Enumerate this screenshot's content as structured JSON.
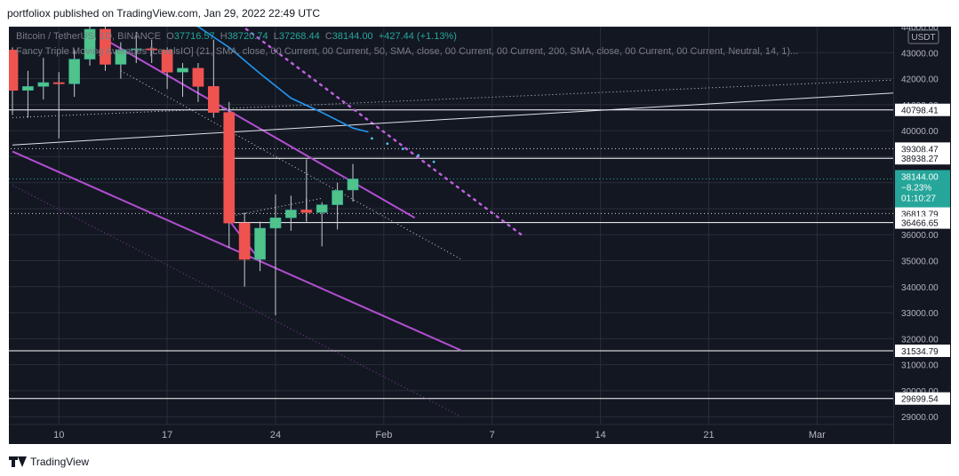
{
  "header": {
    "published_text": "portfoliox published on TradingView.com, Jan 29, 2022 22:49 UTC"
  },
  "legend": {
    "symbol": "Bitcoin / TetherUS, 1D, BINANCE",
    "open_label": "O",
    "open": "37716.57",
    "high_label": "H",
    "high": "38720.74",
    "low_label": "L",
    "low": "37268.44",
    "close_label": "C",
    "close": "38144.00",
    "change": "+427.44 (+1.13%)",
    "indicator": "Fancy Triple Moving Averages [LevelsIO] (21, SMA, close, 00 Current, 00 Current, 50, SMA, close, 00 Current, 00 Current, 200, SMA, close, 00 Current, 00 Current, Neutral, 14, 1)..."
  },
  "price_tag": {
    "price": "38144.00",
    "change": "−8.23%",
    "countdown": "01:10:27"
  },
  "currency_badge": "USDT",
  "footer": {
    "brand": "TradingView"
  },
  "chart_data": {
    "type": "candlestick",
    "symbol": "BTCUSDT",
    "interval": "1D",
    "y_range": [
      28700,
      44000
    ],
    "x_range": [
      "2022-01-07",
      "2022-03-04"
    ],
    "x_ticks": [
      {
        "date": "2022-01-10",
        "label": "10"
      },
      {
        "date": "2022-01-17",
        "label": "17"
      },
      {
        "date": "2022-01-24",
        "label": "24"
      },
      {
        "date": "2022-01-31",
        "label": "Feb"
      },
      {
        "date": "2022-02-07",
        "label": "7"
      },
      {
        "date": "2022-02-14",
        "label": "14"
      },
      {
        "date": "2022-02-21",
        "label": "21"
      },
      {
        "date": "2022-02-28",
        "label": "Mar"
      }
    ],
    "y_ticks": [
      29000,
      30000,
      31000,
      32000,
      33000,
      34000,
      35000,
      36000,
      37000,
      38000,
      39000,
      40000,
      41000,
      42000,
      43000,
      44000
    ],
    "candles": [
      {
        "date": "2022-01-07",
        "o": 43100,
        "h": 43200,
        "l": 40600,
        "c": 41550
      },
      {
        "date": "2022-01-08",
        "o": 41550,
        "h": 42300,
        "l": 40500,
        "c": 41700
      },
      {
        "date": "2022-01-09",
        "o": 41700,
        "h": 42800,
        "l": 41200,
        "c": 41850
      },
      {
        "date": "2022-01-10",
        "o": 41850,
        "h": 42250,
        "l": 39700,
        "c": 41800
      },
      {
        "date": "2022-01-11",
        "o": 41800,
        "h": 43100,
        "l": 41300,
        "c": 42750
      },
      {
        "date": "2022-01-12",
        "o": 42750,
        "h": 44200,
        "l": 42500,
        "c": 43900
      },
      {
        "date": "2022-01-13",
        "o": 43900,
        "h": 44300,
        "l": 42300,
        "c": 42550
      },
      {
        "date": "2022-01-14",
        "o": 42550,
        "h": 43400,
        "l": 42000,
        "c": 43100
      },
      {
        "date": "2022-01-15",
        "o": 43100,
        "h": 43800,
        "l": 42600,
        "c": 43150
      },
      {
        "date": "2022-01-16",
        "o": 43150,
        "h": 43500,
        "l": 42600,
        "c": 43100
      },
      {
        "date": "2022-01-17",
        "o": 43100,
        "h": 43200,
        "l": 41600,
        "c": 42250
      },
      {
        "date": "2022-01-18",
        "o": 42250,
        "h": 42600,
        "l": 41300,
        "c": 42400
      },
      {
        "date": "2022-01-19",
        "o": 42400,
        "h": 42600,
        "l": 41100,
        "c": 41700
      },
      {
        "date": "2022-01-20",
        "o": 41700,
        "h": 43500,
        "l": 40500,
        "c": 40700
      },
      {
        "date": "2022-01-21",
        "o": 40700,
        "h": 41100,
        "l": 35500,
        "c": 36450
      },
      {
        "date": "2022-01-22",
        "o": 36450,
        "h": 36850,
        "l": 34000,
        "c": 35050
      },
      {
        "date": "2022-01-23",
        "o": 35050,
        "h": 36500,
        "l": 34600,
        "c": 36250
      },
      {
        "date": "2022-01-24",
        "o": 36250,
        "h": 37550,
        "l": 32900,
        "c": 36650
      },
      {
        "date": "2022-01-25",
        "o": 36650,
        "h": 37500,
        "l": 36150,
        "c": 36950
      },
      {
        "date": "2022-01-26",
        "o": 36950,
        "h": 38900,
        "l": 36700,
        "c": 36850
      },
      {
        "date": "2022-01-27",
        "o": 36850,
        "h": 37250,
        "l": 35550,
        "c": 37150
      },
      {
        "date": "2022-01-28",
        "o": 37150,
        "h": 38000,
        "l": 36200,
        "c": 37700
      },
      {
        "date": "2022-01-29",
        "o": 37716.57,
        "h": 38720.74,
        "l": 37268.44,
        "c": 38144.0
      }
    ],
    "moving_average": {
      "name": "",
      "color": "#2196f3",
      "points": [
        {
          "date": "2022-01-17",
          "v": 44400
        },
        {
          "date": "2022-01-19",
          "v": 44000
        },
        {
          "date": "2022-01-21",
          "v": 43200
        },
        {
          "date": "2022-01-23",
          "v": 42200
        },
        {
          "date": "2022-01-25",
          "v": 41250
        },
        {
          "date": "2022-01-27",
          "v": 40700
        },
        {
          "date": "2022-01-29",
          "v": 40100
        },
        {
          "date": "2022-01-30",
          "v": 39950
        }
      ]
    },
    "ma_dots": {
      "color": "#4fc3f7",
      "points": [
        {
          "date": "2022-01-30",
          "v": 39700
        },
        {
          "date": "2022-01-31",
          "v": 39500
        },
        {
          "date": "2022-02-01",
          "v": 39300
        },
        {
          "date": "2022-02-02",
          "v": 39050
        },
        {
          "date": "2022-02-03",
          "v": 38800
        }
      ]
    },
    "levels": [
      {
        "value": 40798.41,
        "label": "40798.41",
        "style": "solid",
        "from": "2022-01-07"
      },
      {
        "value": 39308.47,
        "label": "39308.47",
        "style": "dotted",
        "from": "2022-01-07"
      },
      {
        "value": 38938.27,
        "label": "38938.27",
        "style": "solid",
        "from": "2022-01-21"
      },
      {
        "value": 36813.79,
        "label": "36813.79",
        "style": "dotted",
        "from": "2022-01-07"
      },
      {
        "value": 36466.65,
        "label": "36466.65",
        "style": "solid",
        "from": "2022-01-21"
      },
      {
        "value": 31534.79,
        "label": "31534.79",
        "style": "solid",
        "from": "2022-01-07"
      },
      {
        "value": 29699.54,
        "label": "29699.54",
        "style": "solid",
        "from": "2022-01-07"
      }
    ],
    "current_price_line": {
      "value": 38144.0,
      "color": "#26a69a"
    },
    "trend_lines": [
      {
        "style": "purple-solid",
        "from": {
          "date": "2022-01-07",
          "v": 39200
        },
        "to": {
          "date": "2022-02-05",
          "v": 31550
        }
      },
      {
        "style": "purple-solid",
        "from": {
          "date": "2022-01-13",
          "v": 43500
        },
        "to": {
          "date": "2022-02-02",
          "v": 36650
        }
      },
      {
        "style": "purple-solid",
        "from": {
          "date": "2022-01-21",
          "v": 36550
        },
        "to": {
          "date": "2022-01-23",
          "v": 35000
        }
      },
      {
        "style": "purple-thin-dotted",
        "from": {
          "date": "2022-01-07",
          "v": 37900
        },
        "to": {
          "date": "2022-02-05",
          "v": 29000
        }
      },
      {
        "style": "purple-dotted",
        "from": {
          "date": "2022-01-21",
          "v": 44400
        },
        "to": {
          "date": "2022-02-09",
          "v": 35950
        }
      },
      {
        "style": "white-solid",
        "from": {
          "date": "2022-01-07",
          "v": 39450
        },
        "to": {
          "date": "2022-03-05",
          "v": 41450
        }
      },
      {
        "style": "white-dotted",
        "from": {
          "date": "2022-01-07",
          "v": 40500
        },
        "to": {
          "date": "2022-03-05",
          "v": 41950
        }
      },
      {
        "style": "white-dotted",
        "from": {
          "date": "2022-01-14",
          "v": 42300
        },
        "to": {
          "date": "2022-02-05",
          "v": 35050
        }
      },
      {
        "style": "white-dotted",
        "from": {
          "date": "2022-01-21",
          "v": 36700
        },
        "to": {
          "date": "2022-01-27",
          "v": 37400
        }
      },
      {
        "style": "white-solid",
        "from": {
          "date": "2022-01-26",
          "v": 37400
        },
        "to": {
          "date": "2022-01-26",
          "v": 36500
        }
      }
    ],
    "colors": {
      "up": "#26a69a",
      "up_fill": "#4fc38a",
      "down": "#ef5350",
      "grid": "#2a2e39",
      "axis_text": "#b2b5be",
      "ma_yellow": "#f7e04b"
    }
  }
}
